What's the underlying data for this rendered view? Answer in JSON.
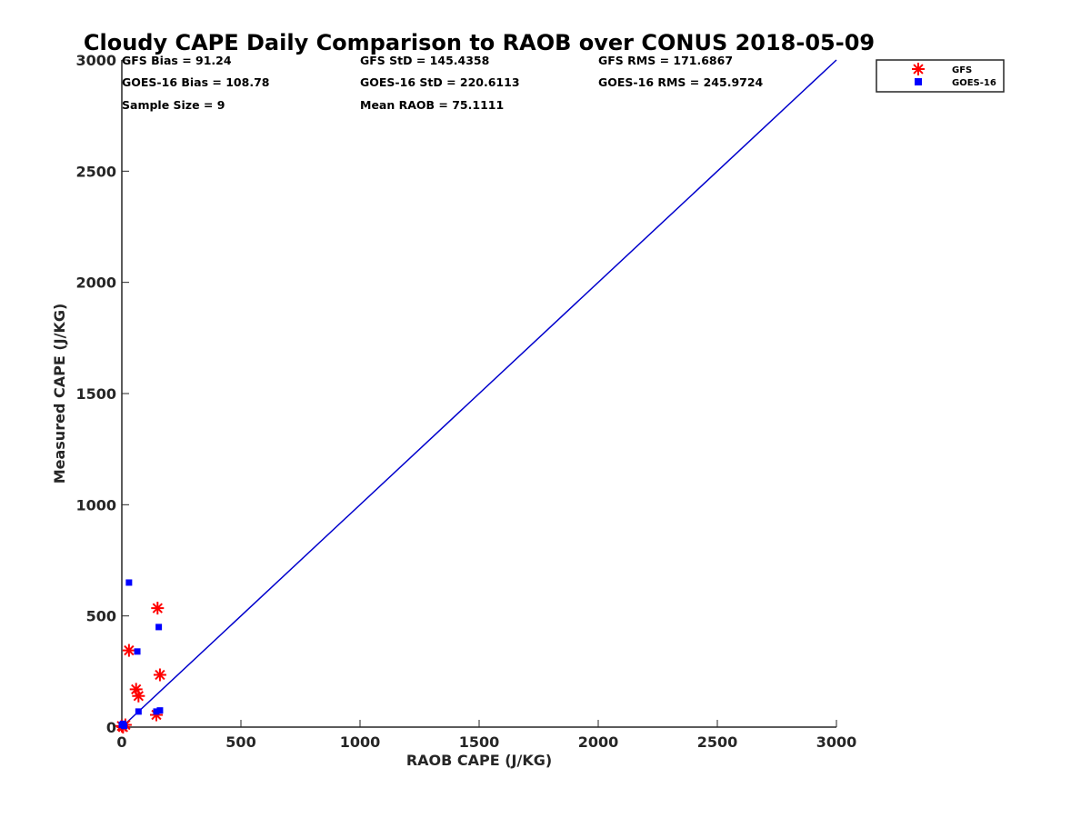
{
  "chart_data": {
    "type": "scatter",
    "title": "Cloudy CAPE Daily Comparison to RAOB over CONUS 2018-05-09",
    "xlabel": "RAOB CAPE (J/KG)",
    "ylabel": "Measured CAPE (J/KG)",
    "xlim": [
      0,
      3000
    ],
    "ylim": [
      0,
      3000
    ],
    "xticks": [
      0,
      500,
      1000,
      1500,
      2000,
      2500,
      3000
    ],
    "yticks": [
      0,
      500,
      1000,
      1500,
      2000,
      2500,
      3000
    ],
    "grid": false,
    "legend_position": "top-right",
    "reference_line": {
      "from": [
        0,
        0
      ],
      "to": [
        3000,
        3000
      ],
      "color": "#0000cc"
    },
    "stats": [
      [
        "GFS Bias = 91.24",
        "GFS StD = 145.4358",
        "GFS RMS = 171.6867"
      ],
      [
        "GOES-16 Bias = 108.78",
        "GOES-16 StD = 220.6113",
        "GOES-16 RMS = 245.9724"
      ],
      [
        "Sample Size = 9",
        "Mean RAOB = 75.1111",
        ""
      ]
    ],
    "series": [
      {
        "name": "GFS",
        "marker": "asterisk",
        "color": "#ff0000",
        "points": [
          [
            0,
            5
          ],
          [
            5,
            0
          ],
          [
            15,
            10
          ],
          [
            30,
            345
          ],
          [
            60,
            170
          ],
          [
            70,
            140
          ],
          [
            145,
            55
          ],
          [
            150,
            535
          ],
          [
            160,
            235
          ]
        ]
      },
      {
        "name": "GOES-16",
        "marker": "square",
        "color": "#0000ff",
        "points": [
          [
            0,
            10
          ],
          [
            5,
            15
          ],
          [
            10,
            5
          ],
          [
            30,
            650
          ],
          [
            65,
            340
          ],
          [
            70,
            70
          ],
          [
            145,
            70
          ],
          [
            155,
            450
          ],
          [
            160,
            75
          ]
        ]
      }
    ]
  }
}
